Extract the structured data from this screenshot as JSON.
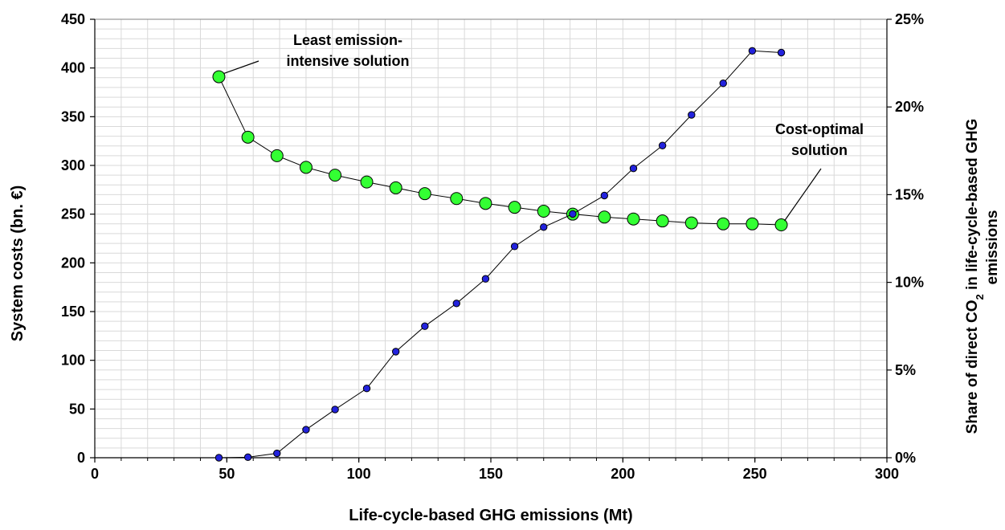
{
  "chart_data": {
    "type": "scatter",
    "xlabel": "Life-cycle-based GHG emissions (Mt)",
    "ylabel": "System costs (bn. €)",
    "y2label_line1": "Share of direct CO",
    "y2label_sub": "2",
    "y2label_line1_rest": " in life-cycle-based GHG",
    "y2label_line2": "emissions",
    "xlim": [
      0,
      300
    ],
    "ylim": [
      0,
      450
    ],
    "y2lim": [
      0,
      0.25
    ],
    "x_ticks": [
      "0",
      "50",
      "100",
      "150",
      "200",
      "250",
      "300"
    ],
    "y_ticks": [
      "0",
      "50",
      "100",
      "150",
      "200",
      "250",
      "300",
      "350",
      "400",
      "450"
    ],
    "y2_ticks": [
      "0%",
      "5%",
      "10%",
      "15%",
      "20%",
      "25%"
    ],
    "grid": true,
    "series": [
      {
        "axis": "left",
        "color": "#33ff33",
        "x": [
          47,
          58,
          69,
          80,
          91,
          103,
          114,
          125,
          137,
          148,
          159,
          170,
          181,
          193,
          204,
          215,
          226,
          238,
          249,
          260
        ],
        "y": [
          391,
          329,
          310,
          298,
          290,
          283,
          277,
          271,
          266,
          261,
          257,
          253,
          250,
          247,
          245,
          243,
          241,
          240,
          240,
          239
        ]
      },
      {
        "axis": "right",
        "color": "#2222dd",
        "x": [
          47,
          58,
          69,
          80,
          91,
          103,
          114,
          125,
          137,
          148,
          159,
          170,
          181,
          193,
          204,
          215,
          226,
          238,
          249,
          260
        ],
        "y": [
          0.0,
          0.0003,
          0.0025,
          0.016,
          0.0275,
          0.0395,
          0.0605,
          0.075,
          0.088,
          0.102,
          0.1205,
          0.1315,
          0.139,
          0.1495,
          0.165,
          0.178,
          0.1955,
          0.2135,
          0.232,
          0.231
        ]
      }
    ],
    "annotations": [
      {
        "line1": "Least emission-",
        "line2": "intensive solution"
      },
      {
        "line1": "Cost-optimal",
        "line2": "solution"
      }
    ]
  }
}
